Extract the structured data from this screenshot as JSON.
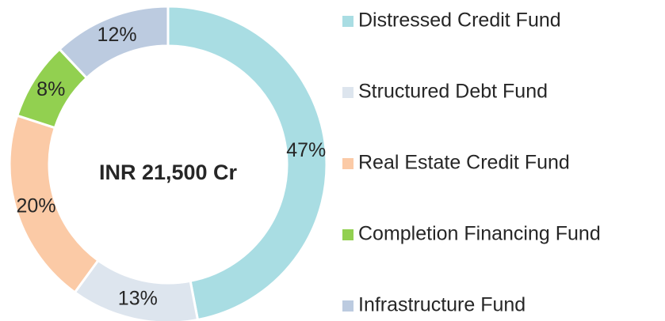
{
  "chart_data": {
    "type": "pie",
    "center_label": "INR 21,500 Cr",
    "categories": [
      "Distressed Credit Fund",
      "Structured Debt Fund",
      "Real Estate Credit Fund",
      "Completion Financing Fund",
      "Infrastructure Fund"
    ],
    "values": [
      47,
      13,
      20,
      8,
      12
    ],
    "value_labels": [
      "47%",
      "13%",
      "20%",
      "8%",
      "12%"
    ],
    "colors": [
      "#a9dde3",
      "#dde5ee",
      "#fbcaa6",
      "#92d050",
      "#bccbe0"
    ],
    "legend": "right"
  }
}
